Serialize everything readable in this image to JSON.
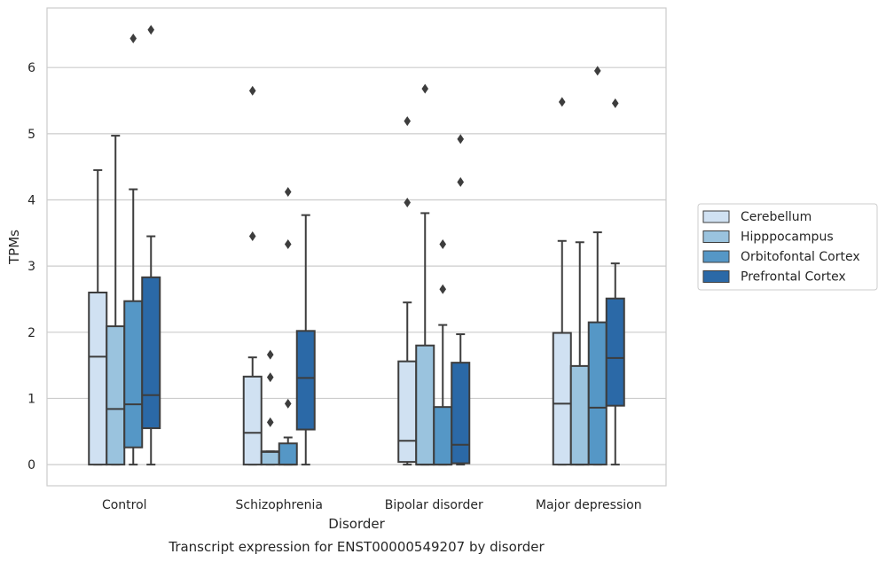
{
  "chart_data": {
    "type": "box",
    "title": "Transcript expression for ENST00000549207 by disorder",
    "xlabel": "Disorder",
    "ylabel": "TPMs",
    "ylim": [
      -0.32,
      6.9
    ],
    "yticks": [
      0,
      1,
      2,
      3,
      4,
      5,
      6
    ],
    "grid": "horizontal",
    "legend_position": "right",
    "categories": [
      "Control",
      "Schizophrenia",
      "Bipolar disorder",
      "Major depression"
    ],
    "series": [
      {
        "name": "Cerebellum",
        "color": "#d0e1f2",
        "boxes": [
          {
            "whislo": 0.0,
            "q1": 0.0,
            "med": 1.63,
            "q3": 2.6,
            "whishi": 4.45,
            "fliers": []
          },
          {
            "whislo": 0.0,
            "q1": 0.0,
            "med": 0.48,
            "q3": 1.33,
            "whishi": 1.62,
            "fliers": [
              3.45,
              5.65
            ]
          },
          {
            "whislo": 0.0,
            "q1": 0.04,
            "med": 0.36,
            "q3": 1.56,
            "whishi": 2.45,
            "fliers": [
              3.96,
              5.19
            ]
          },
          {
            "whislo": 0.0,
            "q1": 0.0,
            "med": 0.92,
            "q3": 1.99,
            "whishi": 3.38,
            "fliers": [
              5.48
            ]
          }
        ]
      },
      {
        "name": "Hipppocampus",
        "color": "#9ac3de",
        "boxes": [
          {
            "whislo": 0.0,
            "q1": 0.0,
            "med": 0.84,
            "q3": 2.09,
            "whishi": 4.97,
            "fliers": []
          },
          {
            "whislo": 0.0,
            "q1": 0.0,
            "med": 0.19,
            "q3": 0.2,
            "whishi": 0.2,
            "fliers": [
              0.64,
              1.32,
              1.66
            ]
          },
          {
            "whislo": 0.0,
            "q1": 0.0,
            "med": 0.0,
            "q3": 1.8,
            "whishi": 3.8,
            "fliers": [
              5.68
            ]
          },
          {
            "whislo": 0.0,
            "q1": 0.0,
            "med": 0.0,
            "q3": 1.49,
            "whishi": 3.36,
            "fliers": []
          }
        ]
      },
      {
        "name": "Orbitofontal Cortex",
        "color": "#5597c6",
        "boxes": [
          {
            "whislo": 0.0,
            "q1": 0.26,
            "med": 0.91,
            "q3": 2.47,
            "whishi": 4.16,
            "fliers": [
              6.44
            ]
          },
          {
            "whislo": 0.0,
            "q1": 0.0,
            "med": 0.0,
            "q3": 0.32,
            "whishi": 0.41,
            "fliers": [
              0.92,
              3.33,
              4.12
            ]
          },
          {
            "whislo": 0.0,
            "q1": 0.0,
            "med": 0.0,
            "q3": 0.87,
            "whishi": 2.11,
            "fliers": [
              2.65,
              3.33
            ]
          },
          {
            "whislo": 0.0,
            "q1": 0.0,
            "med": 0.86,
            "q3": 2.15,
            "whishi": 3.51,
            "fliers": [
              5.95
            ]
          }
        ]
      },
      {
        "name": "Prefrontal Cortex",
        "color": "#2b69a7",
        "boxes": [
          {
            "whislo": 0.0,
            "q1": 0.55,
            "med": 1.05,
            "q3": 2.83,
            "whishi": 3.45,
            "fliers": [
              6.57
            ]
          },
          {
            "whislo": 0.0,
            "q1": 0.53,
            "med": 1.31,
            "q3": 2.02,
            "whishi": 3.77,
            "fliers": []
          },
          {
            "whislo": 0.0,
            "q1": 0.02,
            "med": 0.3,
            "q3": 1.54,
            "whishi": 1.97,
            "fliers": [
              4.27,
              4.92
            ]
          },
          {
            "whislo": 0.0,
            "q1": 0.89,
            "med": 1.61,
            "q3": 2.51,
            "whishi": 3.04,
            "fliers": [
              5.46
            ]
          }
        ]
      }
    ]
  }
}
